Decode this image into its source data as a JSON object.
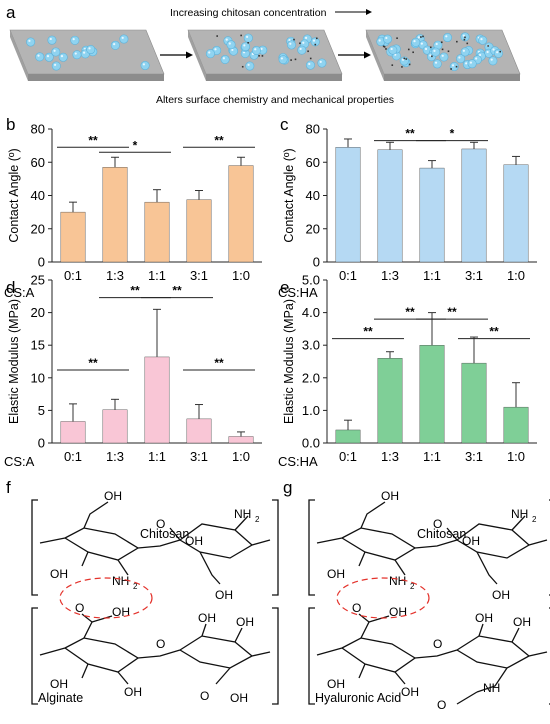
{
  "panel_a": {
    "label": "a",
    "top_text": "Increasing chitosan concentration",
    "bottom_text": "Alters surface chemistry and mechanical properties"
  },
  "panel_labels": {
    "b": "b",
    "c": "c",
    "d": "d",
    "e": "e",
    "f": "f",
    "g": "g"
  },
  "colors": {
    "orange": "#F8C596",
    "blue": "#B5D9F3",
    "pink": "#F9C6D6",
    "green": "#7FCF97",
    "bead": "#8FD3F0",
    "slab_top": "#B4B4B4",
    "slab_side": "#8C8C8C",
    "dashed_ellipse": "#E4322B"
  },
  "chart_data": [
    {
      "panel": "b",
      "type": "bar",
      "color": "orange",
      "categories": [
        "0:1",
        "1:3",
        "1:1",
        "3:1",
        "1:0"
      ],
      "values": [
        30,
        57,
        36,
        37.5,
        58
      ],
      "errors": [
        6,
        6,
        7.5,
        5.5,
        5
      ],
      "xlabel": "CS:A",
      "ylabel": "Contact Angle (º)",
      "ylim": [
        0,
        80
      ],
      "yticks": [
        "0",
        "20",
        "40",
        "60",
        "80"
      ],
      "significance": [
        {
          "from": 0,
          "to": 1,
          "label": "**",
          "y": 69
        },
        {
          "from": 1,
          "to": 2,
          "label": "*",
          "y": 66
        },
        {
          "from": 3,
          "to": 4,
          "label": "**",
          "y": 69
        }
      ]
    },
    {
      "panel": "c",
      "type": "bar",
      "color": "blue",
      "categories": [
        "0:1",
        "1:3",
        "1:1",
        "3:1",
        "1:0"
      ],
      "values": [
        69,
        67.5,
        56.5,
        68,
        58.5
      ],
      "errors": [
        5,
        4.5,
        4.5,
        4,
        5
      ],
      "xlabel": "CS:HA",
      "ylabel": "Contact Angle (º)",
      "ylim": [
        0,
        80
      ],
      "yticks": [
        "0",
        "20",
        "40",
        "60",
        "80"
      ],
      "significance": [
        {
          "from": 1,
          "to": 2,
          "label": "**",
          "y": 73
        },
        {
          "from": 2,
          "to": 3,
          "label": "*",
          "y": 73
        }
      ]
    },
    {
      "panel": "d",
      "type": "bar",
      "color": "pink",
      "categories": [
        "0:1",
        "1:3",
        "1:1",
        "3:1",
        "1:0"
      ],
      "values": [
        3.3,
        5.1,
        13.2,
        3.7,
        1.0
      ],
      "errors": [
        2.7,
        1.6,
        7.3,
        2.2,
        0.7
      ],
      "xlabel": "CS:A",
      "ylabel": "Elastic Modulus (MPa)",
      "ylim": [
        0,
        25
      ],
      "yticks": [
        "0",
        "5",
        "10",
        "15",
        "20",
        "25"
      ],
      "significance": [
        {
          "from": 0,
          "to": 1,
          "label": "**",
          "y": 11.2
        },
        {
          "from": 1,
          "to": 2,
          "label": "**",
          "y": 22.3
        },
        {
          "from": 2,
          "to": 3,
          "label": "**",
          "y": 22.3
        },
        {
          "from": 3,
          "to": 4,
          "label": "**",
          "y": 11.2
        }
      ]
    },
    {
      "panel": "e",
      "type": "bar",
      "color": "green",
      "categories": [
        "0:1",
        "1:3",
        "1:1",
        "3:1",
        "1:0"
      ],
      "values": [
        0.4,
        2.6,
        3.0,
        2.45,
        1.1
      ],
      "errors": [
        0.3,
        0.2,
        1.0,
        0.8,
        0.75
      ],
      "xlabel": "CS:HA",
      "ylabel": "Elastic Modulus (MPa)",
      "ylim": [
        0,
        5
      ],
      "yticks": [
        "0.0",
        "1.0",
        "2.0",
        "3.0",
        "4.0",
        "5.0"
      ],
      "significance": [
        {
          "from": 0,
          "to": 1,
          "label": "**",
          "y": 3.2
        },
        {
          "from": 1,
          "to": 2,
          "label": "**",
          "y": 3.8
        },
        {
          "from": 2,
          "to": 3,
          "label": "**",
          "y": 3.8
        },
        {
          "from": 3,
          "to": 4,
          "label": "**",
          "y": 3.2
        }
      ]
    }
  ],
  "structure_f": {
    "top_polymer": "Chitosan",
    "bottom_polymer": "Alginate",
    "OH": "OH",
    "NH": "NH",
    "sub2": "2",
    "O": "O"
  },
  "structure_g": {
    "top_polymer": "Chitosan",
    "bottom_polymer": "Hyaluronic Acid",
    "OH": "OH",
    "NH": "NH",
    "sub2": "2",
    "O": "O"
  }
}
